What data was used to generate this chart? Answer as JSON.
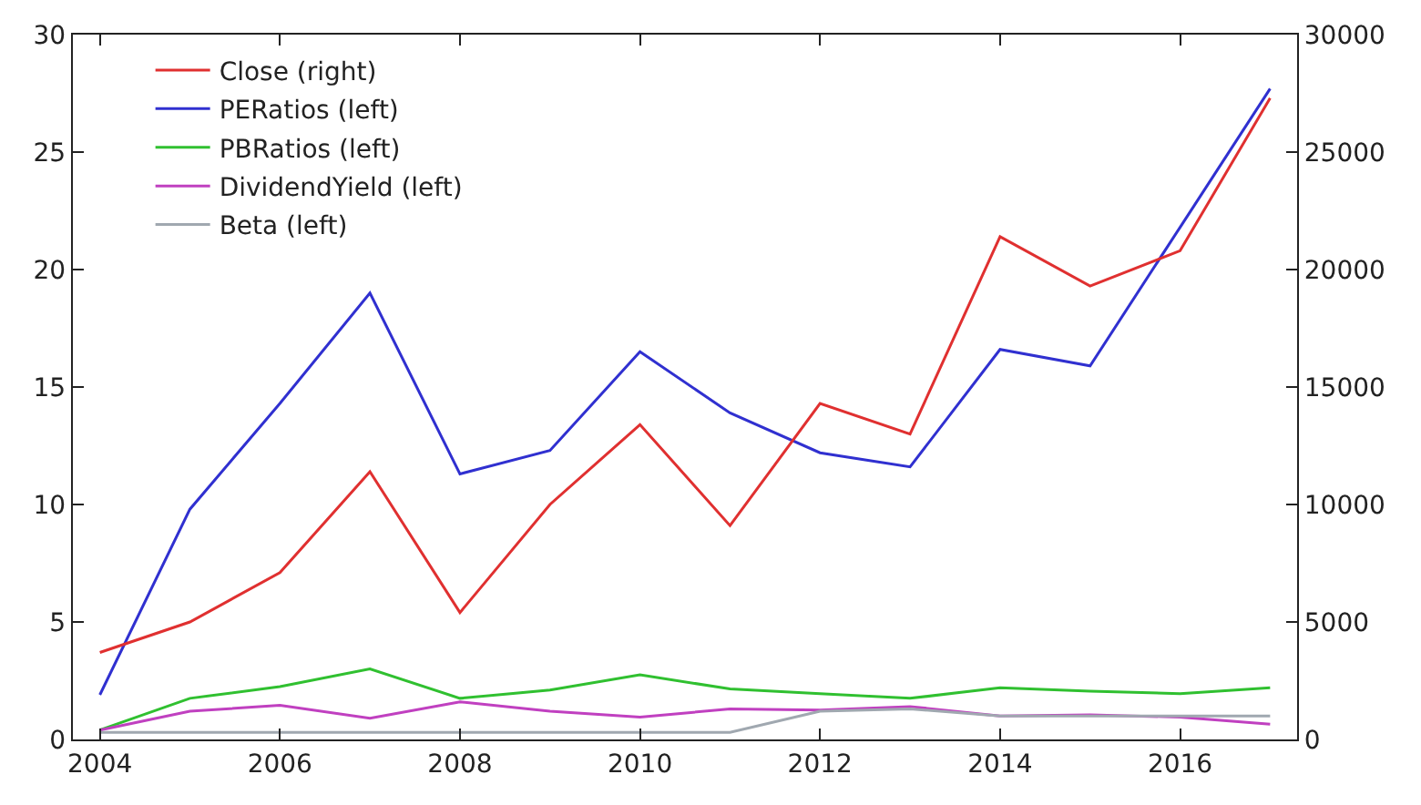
{
  "chart_data": {
    "type": "line",
    "x": [
      2004,
      2005,
      2006,
      2007,
      2008,
      2009,
      2010,
      2011,
      2012,
      2013,
      2014,
      2015,
      2016,
      2017
    ],
    "series": [
      {
        "name": "Close (right)",
        "color": "#e03030",
        "axis": "y2",
        "values": [
          3700,
          5000,
          7100,
          11400,
          5400,
          10000,
          13400,
          9100,
          14300,
          13000,
          21400,
          19300,
          20800,
          27300
        ]
      },
      {
        "name": "PERatios (left)",
        "color": "#3030d0",
        "values": [
          1.9,
          9.8,
          14.3,
          19.0,
          11.3,
          12.3,
          16.5,
          13.9,
          12.2,
          11.6,
          16.6,
          15.9,
          21.8,
          27.7
        ]
      },
      {
        "name": "PBRatios (left)",
        "color": "#30c030",
        "values": [
          0.4,
          1.75,
          2.25,
          3.0,
          1.75,
          2.1,
          2.75,
          2.15,
          1.95,
          1.75,
          2.2,
          2.05,
          1.95,
          2.2
        ]
      },
      {
        "name": "DividendYield (left)",
        "color": "#c040c0",
        "values": [
          0.4,
          1.2,
          1.45,
          0.9,
          1.6,
          1.2,
          0.95,
          1.3,
          1.25,
          1.4,
          1.0,
          1.05,
          0.95,
          0.65
        ]
      },
      {
        "name": "Beta (left)",
        "color": "#a0a8b0",
        "values": [
          0.3,
          0.3,
          0.3,
          0.3,
          0.3,
          0.3,
          0.3,
          0.3,
          1.2,
          1.3,
          1.0,
          1.0,
          1.0,
          1.0
        ]
      }
    ],
    "xlim": [
      2003.7,
      2017.3
    ],
    "xticks": [
      2004,
      2006,
      2008,
      2010,
      2012,
      2014,
      2016
    ],
    "ylim": [
      0,
      30
    ],
    "yticks": [
      0,
      5,
      10,
      15,
      20,
      25,
      30
    ],
    "y2lim": [
      0,
      30000
    ],
    "y2ticks": [
      0,
      5000,
      10000,
      15000,
      20000,
      25000,
      30000
    ],
    "legend": "top left",
    "marker": "none",
    "line_style": "solid"
  }
}
